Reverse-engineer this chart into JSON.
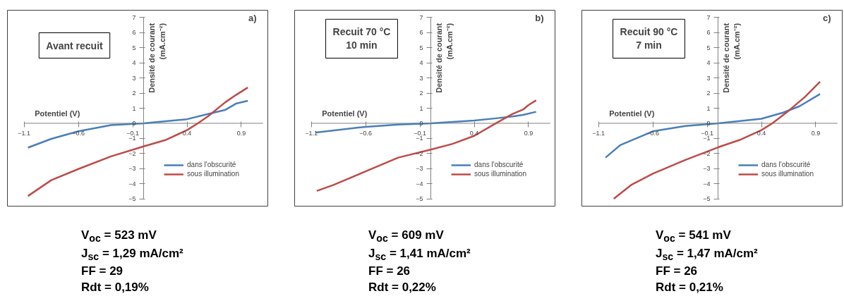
{
  "chart_data": [
    {
      "type": "line",
      "title": "Avant recuit",
      "xlabel": "Potentiel (V)",
      "ylabel": "Densité de courant\n(mA.cm⁻²)",
      "annotations": [
        "a)",
        "V$_{oc}$ = 523 mV",
        "J$_{sc}$ = 1,29 mA/cm²",
        "FF = 29",
        "Rdt = 0,19%"
      ],
      "xlim": [
        -1.1,
        1.1
      ],
      "ylim": [
        -5,
        7
      ],
      "xticks": [
        -1.1,
        -0.6,
        -0.1,
        0.4,
        0.9
      ],
      "yticks": [
        -5,
        -4,
        -3,
        -2,
        -1,
        0,
        1,
        2,
        3,
        4,
        5,
        6,
        7
      ],
      "grid": false,
      "legend": "bottom right",
      "line_style": "solid",
      "marker": "none",
      "series": [
        {
          "name": "dans l'obscurité",
          "color": "#4a7ebb",
          "x": [
            -1.065,
            -0.85,
            -0.6,
            -0.3,
            0,
            0.4,
            0.6,
            0.75,
            0.85,
            0.96
          ],
          "values": [
            -1.61,
            -1.03,
            -0.53,
            -0.12,
            0,
            0.27,
            0.63,
            0.88,
            1.3,
            1.49
          ]
        },
        {
          "name": "sous illumination",
          "color": "#be4b48",
          "x": [
            -1.065,
            -0.85,
            -0.6,
            -0.3,
            0,
            0.2,
            0.4,
            0.5,
            0.6,
            0.75,
            0.85,
            0.96
          ],
          "values": [
            -4.81,
            -3.76,
            -3.02,
            -2.19,
            -1.53,
            -1.11,
            -0.45,
            0,
            0.5,
            1.38,
            1.87,
            2.37
          ]
        }
      ]
    },
    {
      "type": "line",
      "title": "Recuit 70 °C\n10 min",
      "xlabel": "Potentiel (V)",
      "ylabel": "Densité de courant\n(mA.cm⁻²)",
      "annotations": [
        "b)",
        "V$_{oc}$ = 609 mV",
        "J$_{sc}$ = 1,41 mA/cm²",
        "FF = 26",
        "Rdt = 0,22%"
      ],
      "xlim": [
        -1.1,
        1.1
      ],
      "ylim": [
        -5,
        7
      ],
      "xticks": [
        -1.1,
        -0.6,
        -0.1,
        0.4,
        0.9
      ],
      "yticks": [
        -5,
        -4,
        -3,
        -2,
        -1,
        0,
        1,
        2,
        3,
        4,
        5,
        6,
        7
      ],
      "grid": false,
      "legend": "bottom right",
      "line_style": "solid",
      "marker": "none",
      "series": [
        {
          "name": "dans l'obscurité",
          "color": "#4a7ebb",
          "x": [
            -1.057,
            -0.6,
            -0.3,
            0,
            0.4,
            0.6,
            0.75,
            0.85,
            0.97
          ],
          "values": [
            -0.61,
            -0.23,
            -0.08,
            0,
            0.18,
            0.33,
            0.45,
            0.56,
            0.76
          ]
        },
        {
          "name": "sous illumination",
          "color": "#be4b48",
          "x": [
            -1.05,
            -0.9,
            -0.6,
            -0.3,
            0,
            0.2,
            0.4,
            0.6,
            0.75,
            0.85,
            0.9,
            0.97
          ],
          "values": [
            -4.47,
            -4.09,
            -3.18,
            -2.27,
            -1.74,
            -1.36,
            -0.83,
            0,
            0.61,
            0.91,
            1.21,
            1.52
          ]
        }
      ]
    },
    {
      "type": "line",
      "title": "Recuit 90 °C\n7 min",
      "xlabel": "Potentiel (V)",
      "ylabel": "Densité de courant\n(mA.cm⁻²)",
      "annotations": [
        "c)",
        "V$_{oc}$ = 541 mV",
        "J$_{sc}$ = 1,47 mA/cm²",
        "FF = 26",
        "Rdt = 0,21%"
      ],
      "xlim": [
        -1.1,
        1.1
      ],
      "ylim": [
        -5,
        7
      ],
      "xticks": [
        -1.1,
        -0.6,
        -0.1,
        0.4,
        0.9
      ],
      "yticks": [
        -5,
        -4,
        -3,
        -2,
        -1,
        0,
        1,
        2,
        3,
        4,
        5,
        6,
        7
      ],
      "grid": false,
      "legend": "bottom right",
      "line_style": "solid",
      "marker": "none",
      "series": [
        {
          "name": "dans l'obscurité",
          "color": "#4a7ebb",
          "x": [
            -1.036,
            -0.9,
            -0.6,
            -0.3,
            0,
            0.4,
            0.6,
            0.75,
            0.94
          ],
          "values": [
            -2.27,
            -1.44,
            -0.53,
            -0.18,
            0,
            0.3,
            0.71,
            1.13,
            1.94
          ]
        },
        {
          "name": "sous illumination",
          "color": "#be4b48",
          "x": [
            -0.96,
            -0.8,
            -0.6,
            -0.3,
            0,
            0.2,
            0.4,
            0.5,
            0.65,
            0.8,
            0.94
          ],
          "values": [
            -4.99,
            -4.08,
            -3.33,
            -2.42,
            -1.59,
            -1.1,
            -0.45,
            0,
            0.83,
            1.74,
            2.75
          ]
        }
      ]
    }
  ]
}
